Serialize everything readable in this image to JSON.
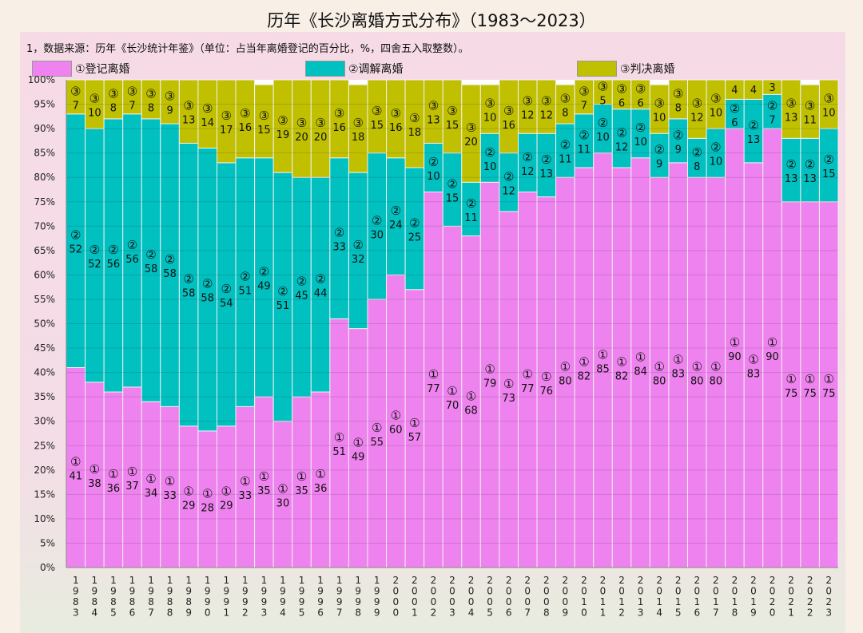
{
  "chart_data": {
    "type": "bar",
    "stacked": true,
    "title": "历年《长沙离婚方式分布》（1983～2023）",
    "note": "1，数据来源：历年《长沙统计年鉴》（单位：占当年离婚登记的百分比，%，四舍五入取整数）。",
    "categories": [
      "1983",
      "1984",
      "1985",
      "1986",
      "1987",
      "1988",
      "1989",
      "1990",
      "1991",
      "1992",
      "1993",
      "1994",
      "1995",
      "1996",
      "1997",
      "1998",
      "1999",
      "2000",
      "2001",
      "2002",
      "2003",
      "2004",
      "2005",
      "2006",
      "2007",
      "2008",
      "2009",
      "2010",
      "2011",
      "2012",
      "2013",
      "2014",
      "2015",
      "2016",
      "2017",
      "2018",
      "2019",
      "2020",
      "2021",
      "2022",
      "2023"
    ],
    "series": [
      {
        "name": "①登记离婚",
        "marker": "①",
        "color": "#ee82ee",
        "values": [
          41,
          38,
          36,
          37,
          34,
          33,
          29,
          28,
          29,
          33,
          35,
          30,
          35,
          36,
          51,
          49,
          55,
          60,
          57,
          77,
          70,
          68,
          79,
          73,
          77,
          76,
          80,
          82,
          85,
          82,
          84,
          80,
          83,
          80,
          80,
          90,
          83,
          90,
          75,
          75,
          75
        ]
      },
      {
        "name": "②调解离婚",
        "marker": "②",
        "color": "#00c0c0",
        "values": [
          52,
          52,
          56,
          56,
          58,
          58,
          58,
          58,
          54,
          51,
          49,
          51,
          45,
          44,
          33,
          32,
          30,
          24,
          25,
          10,
          15,
          11,
          10,
          12,
          12,
          13,
          11,
          11,
          10,
          12,
          10,
          9,
          9,
          8,
          10,
          6,
          13,
          7,
          13,
          13,
          15
        ]
      },
      {
        "name": "③判决离婚",
        "marker": "③",
        "color": "#c0c000",
        "values": [
          7,
          10,
          8,
          7,
          8,
          9,
          13,
          14,
          17,
          16,
          15,
          19,
          20,
          20,
          16,
          18,
          15,
          16,
          18,
          13,
          15,
          20,
          10,
          16,
          12,
          12,
          8,
          7,
          5,
          6,
          6,
          10,
          8,
          12,
          10,
          4,
          4,
          3,
          13,
          11,
          10
        ]
      }
    ],
    "yticks": [
      "0%",
      "5%",
      "10%",
      "15%",
      "20%",
      "25%",
      "30%",
      "35%",
      "40%",
      "45%",
      "50%",
      "55%",
      "60%",
      "65%",
      "70%",
      "75%",
      "80%",
      "85%",
      "90%",
      "95%",
      "100%"
    ],
    "ylim": [
      0,
      100
    ],
    "grid": true,
    "legend": "top"
  }
}
